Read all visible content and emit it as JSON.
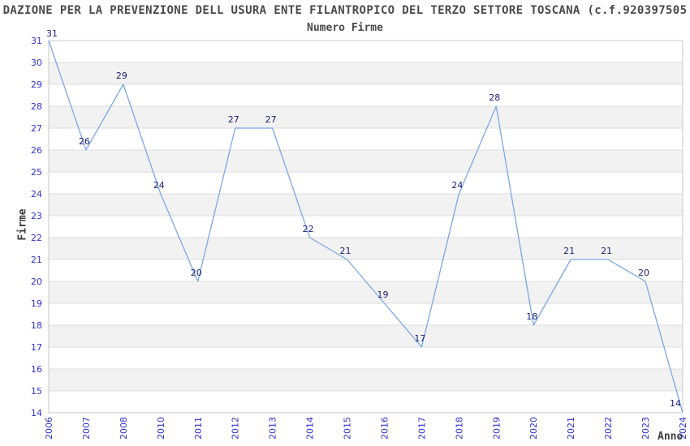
{
  "header": {
    "title": "DAZIONE PER LA PREVENZIONE DELL USURA ENTE FILANTROPICO DEL TERZO SETTORE TOSCANA (c.f.920397505",
    "subtitle": "Numero Firme"
  },
  "chart_data": {
    "type": "line",
    "title": "Numero Firme",
    "xlabel": "Anno",
    "ylabel": "Firme",
    "categories": [
      "2006",
      "2007",
      "2008",
      "2010",
      "2011",
      "2012",
      "2013",
      "2014",
      "2015",
      "2016",
      "2017",
      "2018",
      "2019",
      "2020",
      "2021",
      "2022",
      "2023",
      "2024"
    ],
    "values": [
      31,
      26,
      29,
      24,
      20,
      27,
      27,
      22,
      21,
      19,
      17,
      24,
      28,
      18,
      21,
      21,
      20,
      14
    ],
    "ylim": [
      14,
      31
    ],
    "y_tick_step": 1,
    "x_tick_rotation_deg": -90,
    "grid": "horizontal-lines-with-alternating-bands",
    "legend": "none",
    "point_markers": false,
    "data_labels_shown": true,
    "colors": {
      "line": "#7aa8e6",
      "tick_label": "#3232cd",
      "data_label": "#1c1c78",
      "band_fill": "#f2f2f2",
      "grid_line": "#dcdcdc",
      "plot_border": "#c9c9c9",
      "heading_text": "#4a4a4a",
      "background": "#ffffff"
    }
  }
}
